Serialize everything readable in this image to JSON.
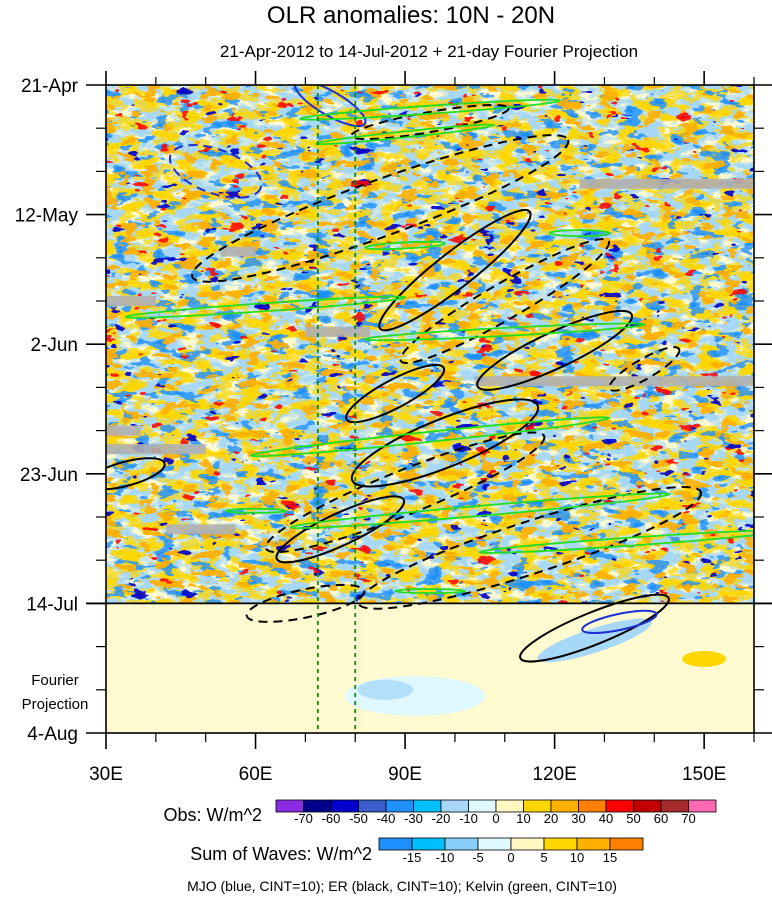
{
  "chart_data": {
    "type": "heatmap",
    "title": "OLR anomalies: 10N - 20N",
    "subtitle": "21-Apr-2012 to 14-Jul-2012 + 21-day Fourier Projection",
    "x_axis": {
      "range": [
        30,
        160
      ],
      "ticks": [
        {
          "value": 30,
          "label": "30E"
        },
        {
          "value": 60,
          "label": "60E"
        },
        {
          "value": 90,
          "label": "90E"
        },
        {
          "value": 120,
          "label": "120E"
        },
        {
          "value": 150,
          "label": "150E"
        }
      ]
    },
    "y_axis": {
      "range_days": [
        0,
        105
      ],
      "ticks": [
        {
          "day": 0,
          "label": "21-Apr"
        },
        {
          "day": 21,
          "label": "12-May"
        },
        {
          "day": 42,
          "label": "2-Jun"
        },
        {
          "day": 63,
          "label": "23-Jun"
        },
        {
          "day": 84,
          "label": "14-Jul"
        },
        {
          "day": 105,
          "label": "4-Aug"
        }
      ],
      "projection_label_line1": "Fourier",
      "projection_label_line2": "Projection"
    },
    "reference_lines_lon": [
      72.5,
      80
    ],
    "observation_end_day": 84,
    "obs_legend": {
      "label": "Obs: W/m^2",
      "levels": [
        "-70",
        "-60",
        "-50",
        "-40",
        "-30",
        "-20",
        "-10",
        "0",
        "10",
        "20",
        "30",
        "40",
        "50",
        "60",
        "70"
      ],
      "colors": [
        "#8a2be2",
        "#00008b",
        "#0000cd",
        "#3a5fcd",
        "#1e90ff",
        "#00bfff",
        "#a8d8f8",
        "#e0f8ff",
        "#fff8c0",
        "#ffd700",
        "#ffb000",
        "#ff7f00",
        "#ff0000",
        "#c00000",
        "#a52a2a",
        "#ff69b4"
      ]
    },
    "waves_legend": {
      "label": "Sum of Waves: W/m^2",
      "levels": [
        "-15",
        "-10",
        "-5",
        "0",
        "5",
        "10",
        "15"
      ],
      "colors": [
        "#1e90ff",
        "#00bfff",
        "#87cefa",
        "#e0f8ff",
        "#fff8c0",
        "#ffd700",
        "#ffb000",
        "#ff7f00"
      ]
    },
    "contour_note": "MJO (blue, CINT=10); ER (black, CINT=10); Kelvin (green, CINT=10)",
    "wave_series": [
      {
        "name": "MJO",
        "color": "#1f2fd6",
        "cint": 10
      },
      {
        "name": "ER",
        "color": "#000000",
        "cint": 10
      },
      {
        "name": "Kelvin",
        "color": "#22dd22",
        "cint": 10
      }
    ]
  }
}
